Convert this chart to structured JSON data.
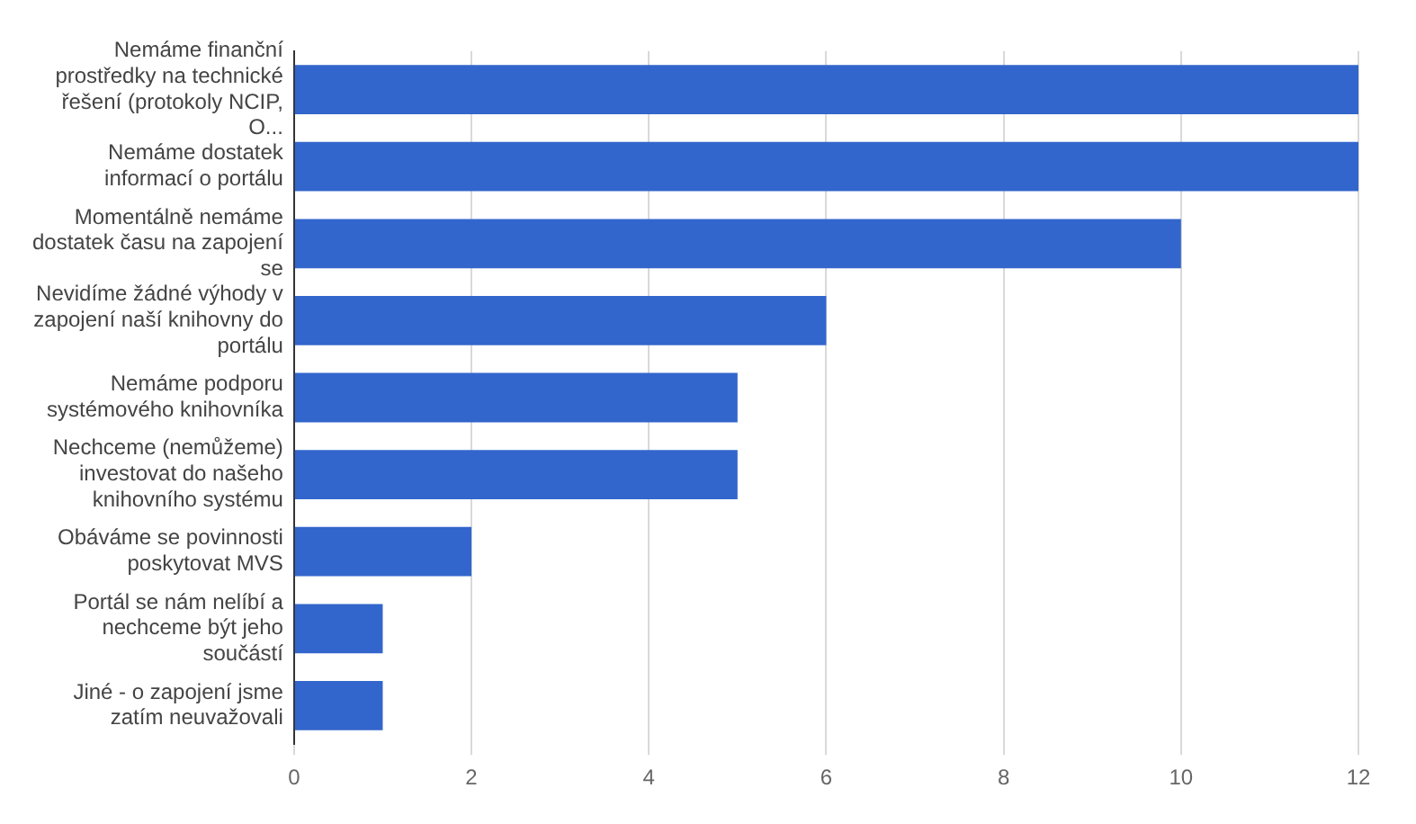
{
  "chart_data": {
    "type": "bar",
    "orientation": "horizontal",
    "categories": [
      "Nemáme finanční prostředky na technické řešení (protokoly NCIP, O...",
      "Nemáme dostatek informací o portálu",
      "Momentálně nemáme dostatek času na zapojení se",
      "Nevidíme žádné výhody v zapojení naší knihovny do portálu",
      "Nemáme podporu systémového knihovníka",
      "Nechceme (nemůžeme) investovat do našeho knihovního systému",
      "Obáváme se povinnosti poskytovat MVS",
      "Portál se nám nelíbí a nechceme být jeho součástí",
      "Jiné - o zapojení jsme zatím neuvažovali"
    ],
    "values": [
      12,
      12,
      10,
      6,
      5,
      5,
      2,
      1,
      1
    ],
    "color": "#3366cc",
    "xlim": [
      0,
      12
    ],
    "xticks": [
      0,
      2,
      4,
      6,
      8,
      10,
      12
    ],
    "grid": "x",
    "legend": false
  }
}
